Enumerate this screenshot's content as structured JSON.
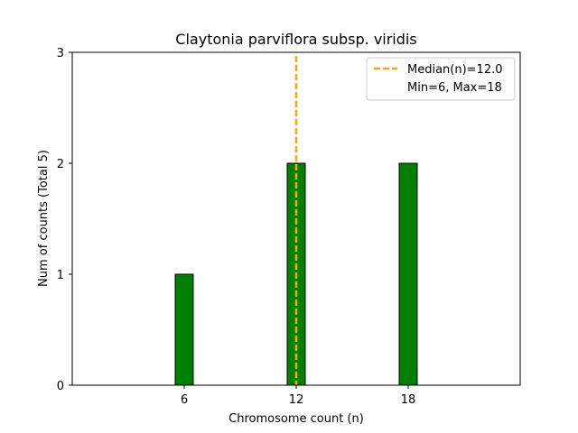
{
  "chart_data": {
    "type": "bar",
    "title": "Claytonia parviflora subsp. viridis",
    "xlabel": "Chromosome count (n)",
    "ylabel": "Num of counts     (Total 5)",
    "x": [
      6,
      12,
      18
    ],
    "values": [
      1,
      2,
      2
    ],
    "xticks": [
      6,
      12,
      18
    ],
    "yticks": [
      0,
      1,
      2,
      3
    ],
    "xlim": [
      0,
      24
    ],
    "ylim": [
      0,
      3
    ],
    "bar_color": "#008000",
    "bar_edge_color": "#000000",
    "median": 12.0,
    "median_color": "#FFA500",
    "legend": {
      "placement": "top-right",
      "entries": [
        "Median(n)=12.0",
        "Min=6, Max=18"
      ]
    },
    "grid": false
  }
}
